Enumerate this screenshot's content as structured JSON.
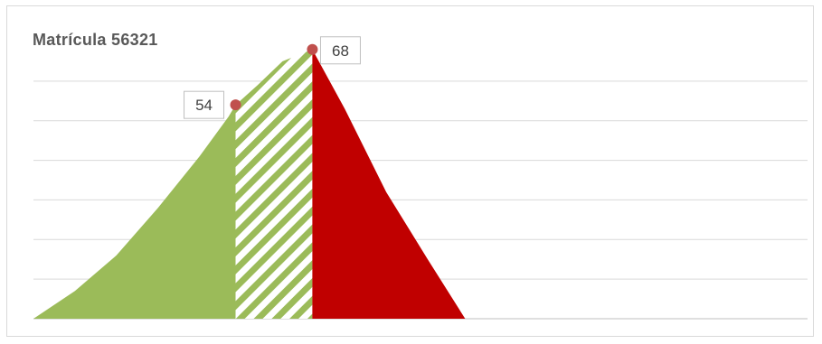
{
  "chart_data": {
    "type": "area",
    "title": "Matrícula 56321",
    "xlabel": "",
    "ylabel": "",
    "ylim": [
      0,
      70
    ],
    "gridlines": [
      10,
      20,
      30,
      40,
      50,
      60
    ],
    "grid": true,
    "legend": "none",
    "x_domain": [
      0,
      100
    ],
    "segments": [
      {
        "name": "",
        "fill": "solid",
        "color": "#9bbb59",
        "points": [
          [
            0,
            0
          ],
          [
            10,
            7
          ],
          [
            20,
            16
          ],
          [
            30,
            28
          ],
          [
            40,
            41
          ],
          [
            47,
            51
          ],
          [
            48.7,
            54
          ]
        ]
      },
      {
        "name": "",
        "fill": "striped",
        "color": "#9bbb59",
        "points": [
          [
            48.7,
            0
          ],
          [
            48.7,
            54
          ],
          [
            54,
            59
          ],
          [
            60,
            65
          ],
          [
            67.2,
            68
          ],
          [
            67.2,
            0
          ]
        ]
      },
      {
        "name": "",
        "fill": "solid",
        "color": "#c00000",
        "points": [
          [
            67.2,
            0
          ],
          [
            67.2,
            68
          ],
          [
            75,
            53
          ],
          [
            85,
            32
          ],
          [
            95,
            15
          ],
          [
            104,
            0
          ]
        ]
      }
    ],
    "markers": [
      {
        "x": 48.7,
        "y": 54,
        "label": "54"
      },
      {
        "x": 67.2,
        "y": 68,
        "label": "68"
      }
    ],
    "colors": {
      "marker": "#c0504d",
      "grid": "#d9d9d9",
      "axis": "#bfbfbf"
    }
  }
}
